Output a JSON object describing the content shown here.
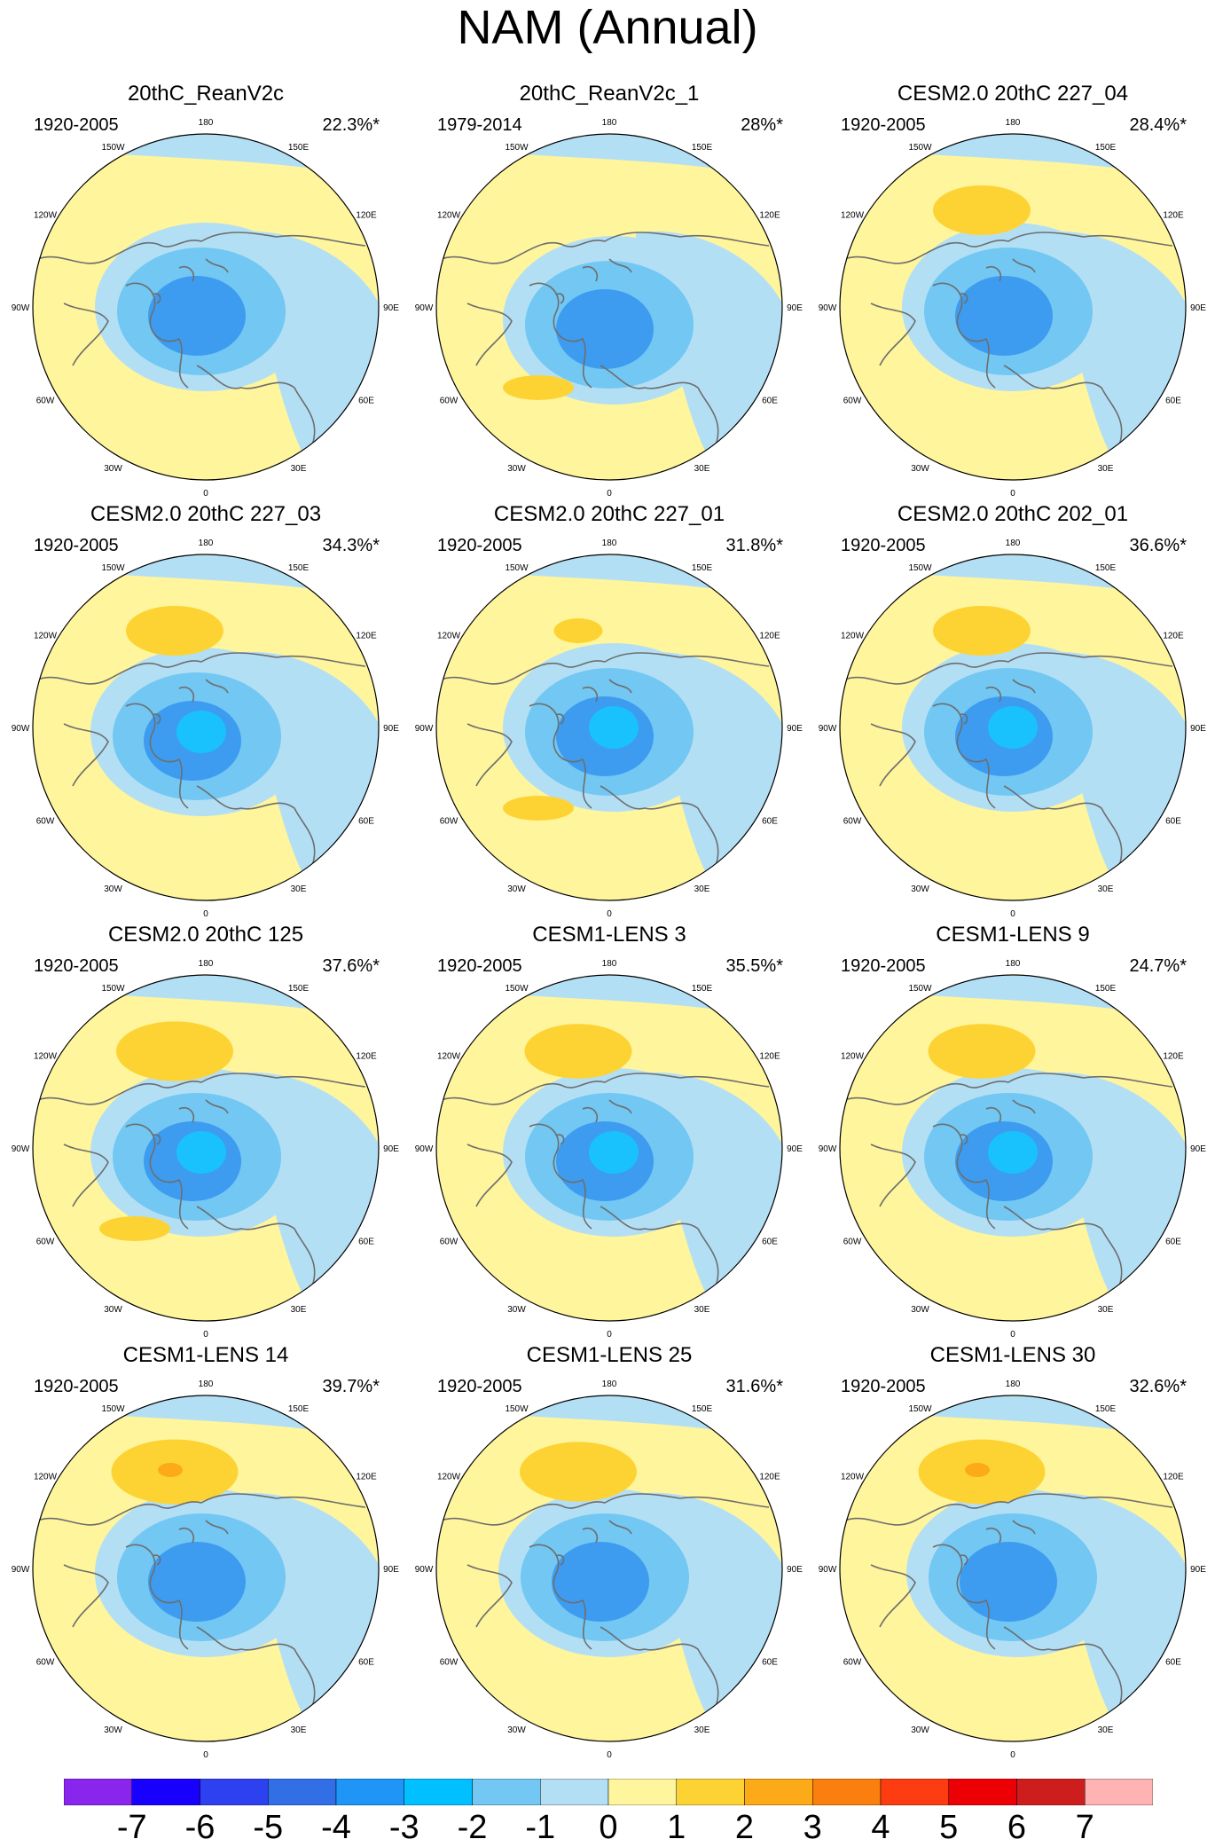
{
  "title": "NAM (Annual)",
  "colors": {
    "ocean_outline": "#000000",
    "coast": "#6e6e6e",
    "pos1": "#fff59c",
    "pos2": "#fdd334",
    "pos3": "#fcaa17",
    "neg1": "#b3dff5",
    "neg2": "#72c7f3",
    "neg3": "#19c2fc",
    "neg4": "#3d9cf0"
  },
  "panels": [
    {
      "title": "20thC_ReanV2c",
      "period": "1920-2005",
      "variance": "22.3%*"
    },
    {
      "title": "20thC_ReanV2c_1",
      "period": "1979-2014",
      "variance": "28%*"
    },
    {
      "title": "CESM2.0 20thC 227_04",
      "period": "1920-2005",
      "variance": "28.4%*"
    },
    {
      "title": "CESM2.0 20thC 227_03",
      "period": "1920-2005",
      "variance": "34.3%*"
    },
    {
      "title": "CESM2.0 20thC 227_01",
      "period": "1920-2005",
      "variance": "31.8%*"
    },
    {
      "title": "CESM2.0 20thC 202_01",
      "period": "1920-2005",
      "variance": "36.6%*"
    },
    {
      "title": "CESM2.0 20thC 125",
      "period": "1920-2005",
      "variance": "37.6%*"
    },
    {
      "title": "CESM1-LENS 3",
      "period": "1920-2005",
      "variance": "35.5%*"
    },
    {
      "title": "CESM1-LENS 9",
      "period": "1920-2005",
      "variance": "24.7%*"
    },
    {
      "title": "CESM1-LENS 14",
      "period": "1920-2005",
      "variance": "39.7%*"
    },
    {
      "title": "CESM1-LENS 25",
      "period": "1920-2005",
      "variance": "31.6%*"
    },
    {
      "title": "CESM1-LENS 30",
      "period": "1920-2005",
      "variance": "32.6%*"
    }
  ],
  "longitude_labels": [
    "180",
    "150E",
    "120E",
    "90E",
    "60E",
    "30E",
    "0",
    "30W",
    "60W",
    "90W",
    "120W",
    "150W"
  ],
  "colorbar": {
    "colors": [
      "#8a25ee",
      "#1800ff",
      "#2e41f0",
      "#316fe6",
      "#1e95f7",
      "#00c0ff",
      "#72c7f3",
      "#b3dff5",
      "#fff59c",
      "#fdd334",
      "#fcaa17",
      "#fa7f0e",
      "#fe3c11",
      "#ec0006",
      "#ce1d1d",
      "#ffb3b3"
    ],
    "labels": [
      "-7",
      "-6",
      "-5",
      "-4",
      "-3",
      "-2",
      "-1",
      "0",
      "1",
      "2",
      "3",
      "4",
      "5",
      "6",
      "7"
    ]
  }
}
